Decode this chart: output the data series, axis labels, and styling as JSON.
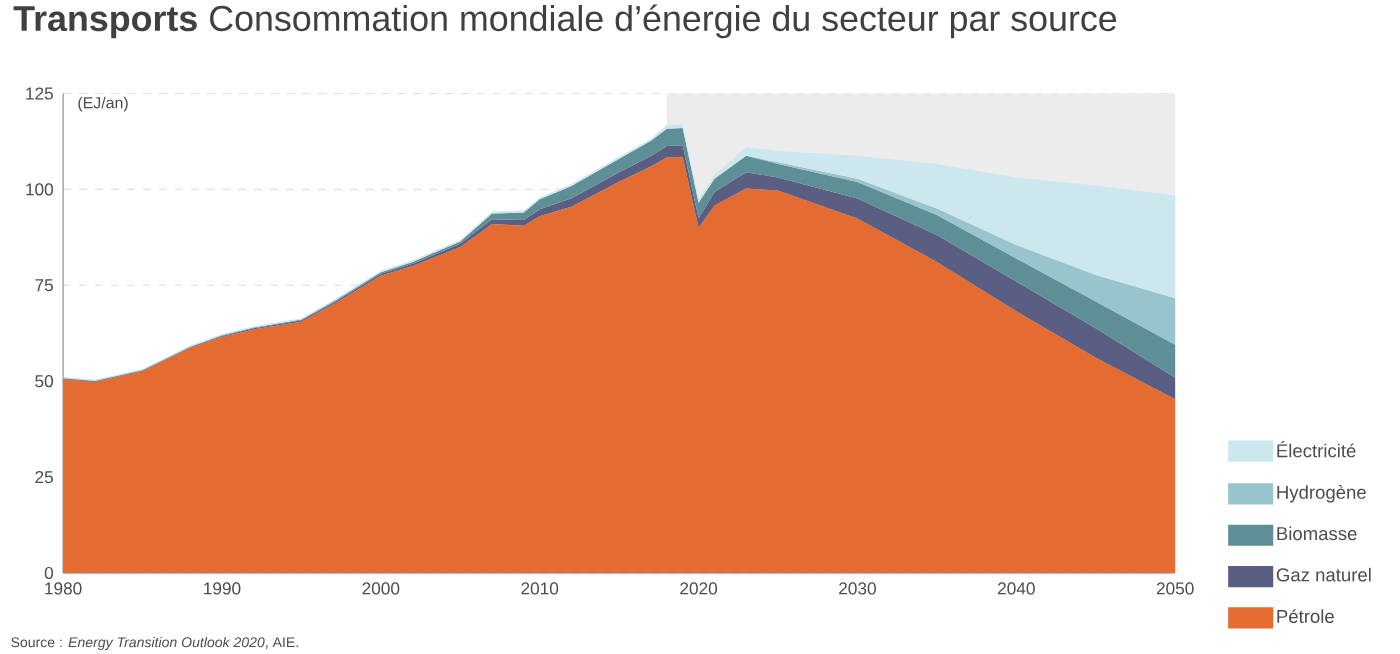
{
  "chart_data": {
    "type": "area",
    "stacked": true,
    "title": "**Transports** Consommation mondiale d’énergie du secteur par source",
    "ylabel": "(EJ/an)",
    "x": [
      1980,
      1982,
      1985,
      1988,
      1990,
      1992,
      1995,
      1997,
      2000,
      2002,
      2005,
      2007,
      2009,
      2010,
      2012,
      2015,
      2017,
      2018,
      2019,
      2020,
      2021,
      2023,
      2025,
      2030,
      2035,
      2040,
      2045,
      2050
    ],
    "series": [
      {
        "name": "Pétrole",
        "color": "#e46c30",
        "values": [
          50.5,
          49.8,
          52.6,
          58.7,
          61.5,
          63.5,
          65.5,
          70,
          77.5,
          80,
          85,
          91,
          90.5,
          93,
          95.5,
          102,
          106,
          108.3,
          108.5,
          90,
          95.8,
          100.2,
          99.7,
          92.4,
          81.1,
          68.2,
          56.1,
          45.3
        ]
      },
      {
        "name": "Gaz naturel",
        "color": "#5a5e82",
        "values": [
          0.2,
          0.2,
          0.2,
          0.2,
          0.3,
          0.3,
          0.4,
          0.4,
          0.5,
          0.6,
          0.8,
          1.2,
          1.5,
          1.8,
          2.2,
          2.5,
          2.7,
          3,
          3,
          2.5,
          3.5,
          4.3,
          3.4,
          5.2,
          7,
          7.8,
          7.7,
          5.6
        ]
      },
      {
        "name": "Biomasse",
        "color": "#5f8f96",
        "values": [
          0.1,
          0.1,
          0.1,
          0.1,
          0.2,
          0.2,
          0.2,
          0.3,
          0.4,
          0.5,
          0.6,
          1.5,
          2,
          2.6,
          3.2,
          3.5,
          4,
          4.5,
          4.5,
          4,
          3.5,
          4.3,
          3.5,
          4.3,
          5.2,
          6,
          7,
          8.6
        ]
      },
      {
        "name": "Hydrogène",
        "color": "#98c4cd",
        "values": [
          null,
          null,
          null,
          null,
          null,
          null,
          null,
          null,
          null,
          null,
          null,
          null,
          null,
          null,
          null,
          null,
          null,
          null,
          null,
          null,
          null,
          0,
          0.5,
          0.9,
          1.7,
          3.5,
          6.9,
          12.1
        ]
      },
      {
        "name": "Électricité",
        "color": "#cde7ee",
        "values": [
          0.3,
          0.3,
          0.3,
          0.3,
          0.3,
          0.3,
          0.3,
          0.4,
          0.4,
          0.4,
          0.4,
          0.5,
          0.5,
          0.5,
          0.5,
          0.5,
          0.5,
          1,
          1,
          1,
          1,
          2.2,
          2.9,
          6,
          11.6,
          17.6,
          23.3,
          26.8
        ]
      }
    ],
    "xlim": [
      1980,
      2050
    ],
    "xticks": [
      1980,
      1990,
      2000,
      2010,
      2020,
      2030,
      2040,
      2050
    ],
    "ylim": [
      0,
      125
    ],
    "yticks": [
      0,
      25,
      50,
      75,
      100,
      125
    ],
    "grid": "y",
    "legend": "right",
    "bands": [
      {
        "axis": "x",
        "from": 2018,
        "to": 2050,
        "color": "#ececec"
      }
    ],
    "annotations": [
      "Source : *Energy Transition Outlook 2020*, AIE."
    ]
  }
}
